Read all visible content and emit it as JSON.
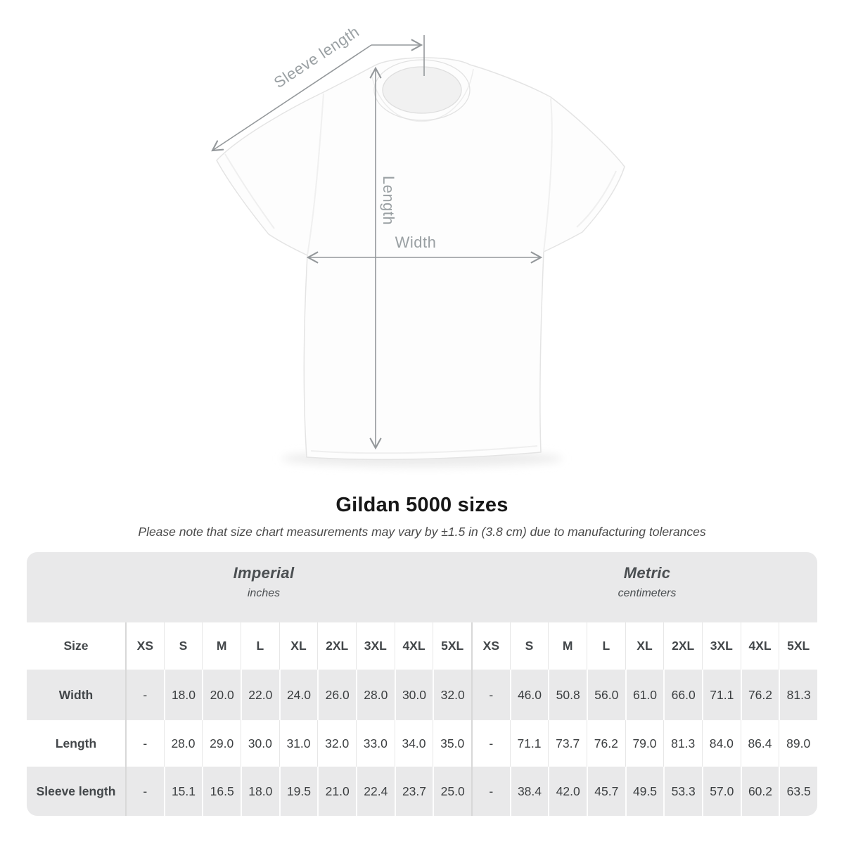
{
  "figure": {
    "sleeve_label": "Sleeve length",
    "length_label": "Length",
    "width_label": "Width"
  },
  "heading": {
    "title": "Gildan 5000 sizes",
    "note": "Please note that size chart measurements may vary by ±1.5 in (3.8 cm) due to manufacturing tolerances"
  },
  "table": {
    "unit_groups": [
      {
        "label": "Imperial",
        "sublabel": "inches"
      },
      {
        "label": "Metric",
        "sublabel": "centimeters"
      }
    ],
    "size_column_header": "Size",
    "sizes": [
      "XS",
      "S",
      "M",
      "L",
      "XL",
      "2XL",
      "3XL",
      "4XL",
      "5XL"
    ],
    "rows": [
      {
        "label": "Width",
        "imperial": [
          "-",
          "18.0",
          "20.0",
          "22.0",
          "24.0",
          "26.0",
          "28.0",
          "30.0",
          "32.0"
        ],
        "metric": [
          "-",
          "46.0",
          "50.8",
          "56.0",
          "61.0",
          "66.0",
          "71.1",
          "76.2",
          "81.3"
        ]
      },
      {
        "label": "Length",
        "imperial": [
          "-",
          "28.0",
          "29.0",
          "30.0",
          "31.0",
          "32.0",
          "33.0",
          "34.0",
          "35.0"
        ],
        "metric": [
          "-",
          "71.1",
          "73.7",
          "76.2",
          "79.0",
          "81.3",
          "84.0",
          "86.4",
          "89.0"
        ]
      },
      {
        "label": "Sleeve length",
        "imperial": [
          "-",
          "15.1",
          "16.5",
          "18.0",
          "19.5",
          "21.0",
          "22.4",
          "23.7",
          "25.0"
        ],
        "metric": [
          "-",
          "38.4",
          "42.0",
          "45.7",
          "49.5",
          "53.3",
          "57.0",
          "60.2",
          "63.5"
        ]
      }
    ]
  },
  "colors": {
    "annotation_gray": "#9aa0a3",
    "band_gray": "#e9e9ea",
    "table_text": "#3c3f41",
    "title_text": "#171717"
  }
}
